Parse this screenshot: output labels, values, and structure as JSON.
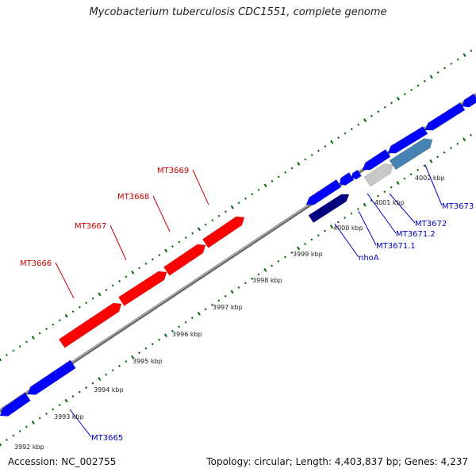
{
  "title": "Mycobacterium tuberculosis CDC1551, complete genome",
  "accession_label": "Accession: NC_002755",
  "topology_label": "Topology: circular; Length: 4,403,837 bp; Genes: 4,237",
  "colors": {
    "forward": "#ff0000",
    "reverse": "#0000ff",
    "dark_reverse": "#000080",
    "steelblue": "#4682b4",
    "grey": "#c8c8c8",
    "backbone": "#808080",
    "tick": "#006400"
  },
  "ticks": [
    "3992 kbp",
    "3993 kbp",
    "3994 kbp",
    "3995 kbp",
    "3996 kbp",
    "3997 kbp",
    "3998 kbp",
    "3999 kbp",
    "4000 kbp",
    "4001 kbp",
    "4002 kbp"
  ],
  "genes": [
    {
      "name": "MT3665",
      "color_key": "reverse"
    },
    {
      "name": "MT3666",
      "color_key": "forward"
    },
    {
      "name": "MT3667",
      "color_key": "forward"
    },
    {
      "name": "MT3668",
      "color_key": "forward"
    },
    {
      "name": "MT3669",
      "color_key": "forward"
    },
    {
      "name": "nhoA",
      "color_key": "dark_reverse"
    },
    {
      "name": "MT3671.1",
      "color_key": "reverse"
    },
    {
      "name": "MT3671.2",
      "color_key": "reverse"
    },
    {
      "name": "MT3672",
      "color_key": "grey"
    },
    {
      "name": "MT3673",
      "color_key": "steelblue"
    }
  ]
}
